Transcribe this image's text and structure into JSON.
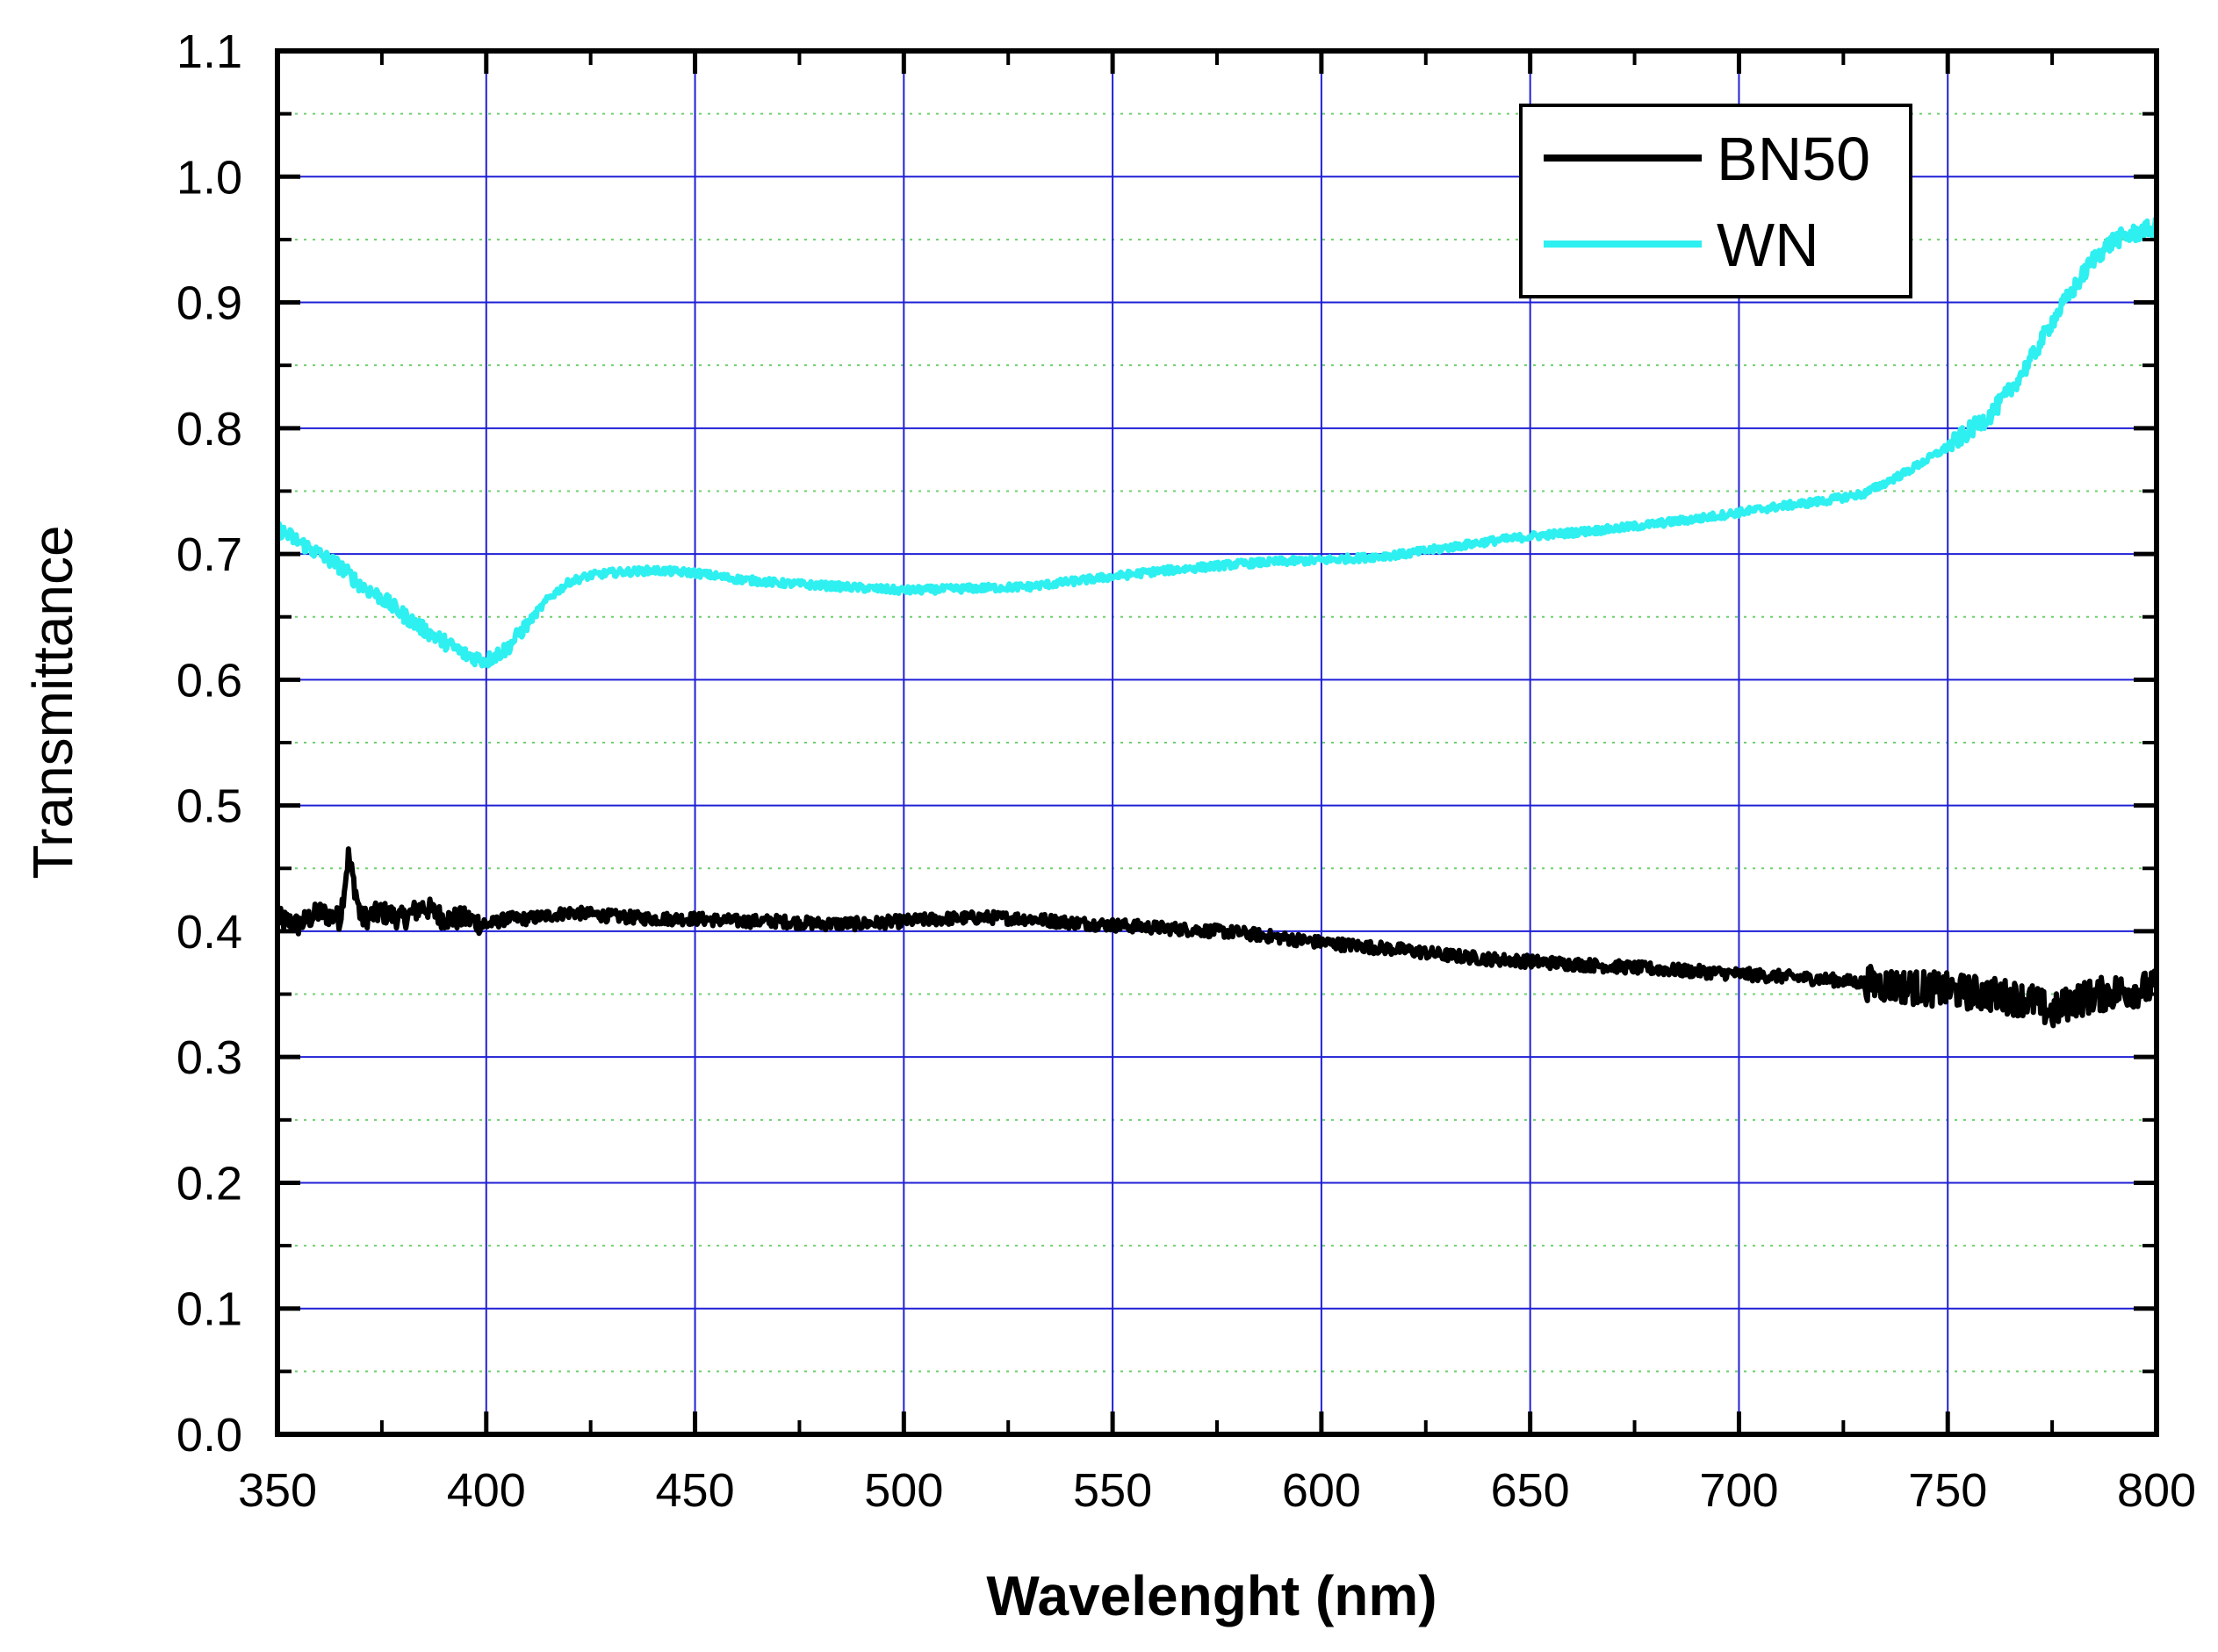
{
  "chart_data": {
    "type": "line",
    "title": "",
    "xlabel": "Wavelenght (nm)",
    "ylabel": "Transmittance",
    "xlim": [
      350,
      800
    ],
    "ylim": [
      0.0,
      1.1
    ],
    "x_ticks": [
      350,
      400,
      450,
      500,
      550,
      600,
      650,
      700,
      750,
      800
    ],
    "x_tick_labels": [
      "350",
      "400",
      "450",
      "500",
      "550",
      "600",
      "650",
      "700",
      "750",
      "800"
    ],
    "y_ticks": [
      0.0,
      0.1,
      0.2,
      0.3,
      0.4,
      0.5,
      0.6,
      0.7,
      0.8,
      0.9,
      1.0,
      1.1
    ],
    "y_tick_labels": [
      "0.0",
      "0.1",
      "0.2",
      "0.3",
      "0.4",
      "0.5",
      "0.6",
      "0.7",
      "0.8",
      "0.9",
      "1.0",
      "1.1"
    ],
    "grid": true,
    "legend_position": "top-right",
    "series": [
      {
        "name": "BN50",
        "color": "#000000",
        "points": [
          [
            350,
            0.41
          ],
          [
            355,
            0.405
          ],
          [
            360,
            0.415
          ],
          [
            365,
            0.41
          ],
          [
            367,
            0.46
          ],
          [
            370,
            0.41
          ],
          [
            375,
            0.415
          ],
          [
            380,
            0.41
          ],
          [
            385,
            0.42
          ],
          [
            390,
            0.41
          ],
          [
            395,
            0.41
          ],
          [
            400,
            0.405
          ],
          [
            405,
            0.41
          ],
          [
            410,
            0.41
          ],
          [
            420,
            0.415
          ],
          [
            430,
            0.412
          ],
          [
            440,
            0.41
          ],
          [
            450,
            0.41
          ],
          [
            460,
            0.408
          ],
          [
            470,
            0.408
          ],
          [
            480,
            0.406
          ],
          [
            490,
            0.406
          ],
          [
            500,
            0.408
          ],
          [
            510,
            0.41
          ],
          [
            520,
            0.411
          ],
          [
            530,
            0.41
          ],
          [
            540,
            0.407
          ],
          [
            550,
            0.405
          ],
          [
            560,
            0.403
          ],
          [
            570,
            0.401
          ],
          [
            580,
            0.399
          ],
          [
            590,
            0.395
          ],
          [
            600,
            0.391
          ],
          [
            610,
            0.388
          ],
          [
            620,
            0.385
          ],
          [
            630,
            0.381
          ],
          [
            640,
            0.378
          ],
          [
            650,
            0.376
          ],
          [
            660,
            0.374
          ],
          [
            670,
            0.372
          ],
          [
            680,
            0.37
          ],
          [
            690,
            0.368
          ],
          [
            700,
            0.366
          ],
          [
            710,
            0.364
          ],
          [
            720,
            0.362
          ],
          [
            730,
            0.359
          ],
          [
            740,
            0.356
          ],
          [
            750,
            0.353
          ],
          [
            760,
            0.35
          ],
          [
            770,
            0.345
          ],
          [
            775,
            0.335
          ],
          [
            780,
            0.345
          ],
          [
            790,
            0.352
          ],
          [
            800,
            0.355
          ]
        ]
      },
      {
        "name": "WN",
        "color": "#2ef0f0",
        "points": [
          [
            350,
            0.72
          ],
          [
            355,
            0.71
          ],
          [
            360,
            0.7
          ],
          [
            365,
            0.69
          ],
          [
            370,
            0.675
          ],
          [
            375,
            0.665
          ],
          [
            380,
            0.652
          ],
          [
            385,
            0.64
          ],
          [
            390,
            0.63
          ],
          [
            395,
            0.62
          ],
          [
            400,
            0.615
          ],
          [
            405,
            0.625
          ],
          [
            410,
            0.645
          ],
          [
            415,
            0.665
          ],
          [
            420,
            0.678
          ],
          [
            425,
            0.683
          ],
          [
            430,
            0.685
          ],
          [
            440,
            0.687
          ],
          [
            450,
            0.685
          ],
          [
            460,
            0.68
          ],
          [
            470,
            0.677
          ],
          [
            480,
            0.675
          ],
          [
            490,
            0.673
          ],
          [
            500,
            0.671
          ],
          [
            510,
            0.672
          ],
          [
            520,
            0.673
          ],
          [
            530,
            0.674
          ],
          [
            540,
            0.678
          ],
          [
            550,
            0.682
          ],
          [
            560,
            0.686
          ],
          [
            570,
            0.689
          ],
          [
            580,
            0.692
          ],
          [
            590,
            0.694
          ],
          [
            600,
            0.695
          ],
          [
            610,
            0.697
          ],
          [
            620,
            0.7
          ],
          [
            630,
            0.705
          ],
          [
            640,
            0.71
          ],
          [
            650,
            0.714
          ],
          [
            660,
            0.717
          ],
          [
            670,
            0.72
          ],
          [
            680,
            0.724
          ],
          [
            690,
            0.728
          ],
          [
            700,
            0.733
          ],
          [
            710,
            0.738
          ],
          [
            720,
            0.742
          ],
          [
            730,
            0.748
          ],
          [
            740,
            0.765
          ],
          [
            750,
            0.785
          ],
          [
            760,
            0.81
          ],
          [
            765,
            0.83
          ],
          [
            770,
            0.855
          ],
          [
            775,
            0.885
          ],
          [
            780,
            0.91
          ],
          [
            785,
            0.935
          ],
          [
            790,
            0.95
          ],
          [
            795,
            0.955
          ],
          [
            800,
            0.96
          ]
        ]
      }
    ]
  }
}
